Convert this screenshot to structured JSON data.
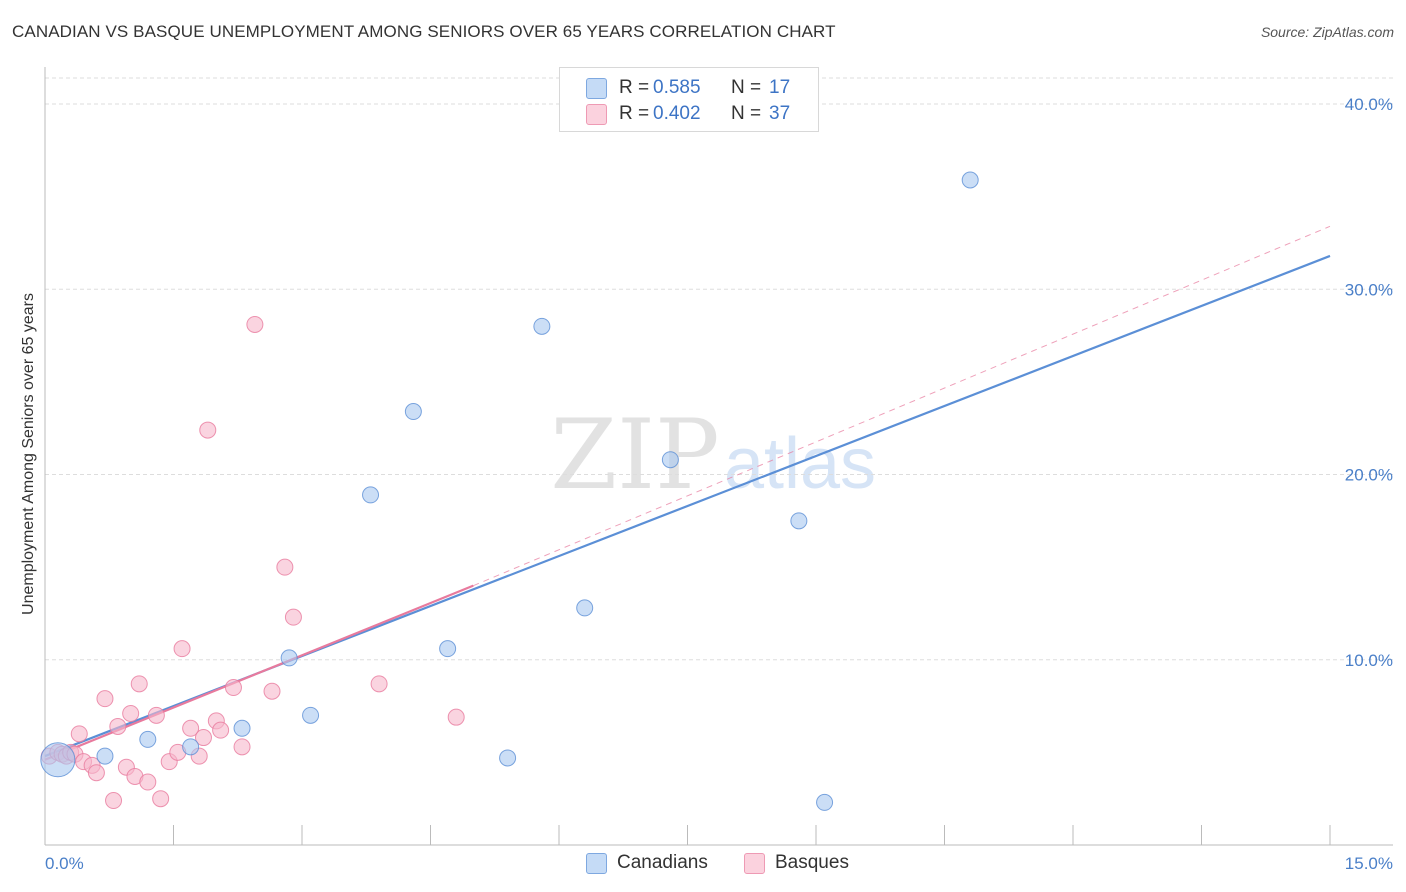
{
  "header": {
    "title": "CANADIAN VS BASQUE UNEMPLOYMENT AMONG SENIORS OVER 65 YEARS CORRELATION CHART",
    "source": "Source: ZipAtlas.com"
  },
  "watermark": {
    "zip": "ZIP",
    "atlas": "atlas"
  },
  "legend": {
    "rows": [
      {
        "r_label": "R =",
        "r_value": "0.585",
        "n_label": "N =",
        "n_value": "17",
        "color": "#a8c8f0"
      },
      {
        "r_label": "R =",
        "r_value": "0.402",
        "n_label": "N =",
        "n_value": "37",
        "color": "#f6b8cb"
      }
    ]
  },
  "bottom_legend": {
    "items": [
      {
        "label": "Canadians",
        "color": "#a8c8f0"
      },
      {
        "label": "Basques",
        "color": "#f6b8cb"
      }
    ]
  },
  "chart_data": {
    "type": "scatter",
    "title": "CANADIAN VS BASQUE UNEMPLOYMENT AMONG SENIORS OVER 65 YEARS CORRELATION CHART",
    "xlabel": "",
    "ylabel": "Unemployment Among Seniors over 65 years",
    "xlim": [
      0,
      15
    ],
    "ylim": [
      0,
      42
    ],
    "x_tick_labels": [
      "0.0%",
      "15.0%"
    ],
    "y_ticks": [
      10,
      20,
      30,
      40
    ],
    "y_tick_labels": [
      "10.0%",
      "20.0%",
      "30.0%",
      "40.0%"
    ],
    "grid": true,
    "series": [
      {
        "name": "Canadians",
        "color": "#5b8fd6",
        "fill": "#a8c8f0",
        "points": [
          {
            "x": 0.15,
            "y": 4.6,
            "big": true
          },
          {
            "x": 0.7,
            "y": 4.8
          },
          {
            "x": 1.2,
            "y": 5.7
          },
          {
            "x": 1.7,
            "y": 5.3
          },
          {
            "x": 2.3,
            "y": 6.3
          },
          {
            "x": 2.85,
            "y": 10.1
          },
          {
            "x": 3.1,
            "y": 7.0
          },
          {
            "x": 3.8,
            "y": 18.9
          },
          {
            "x": 4.3,
            "y": 23.4
          },
          {
            "x": 4.7,
            "y": 10.6
          },
          {
            "x": 5.4,
            "y": 4.7
          },
          {
            "x": 5.8,
            "y": 28.0
          },
          {
            "x": 6.3,
            "y": 12.8
          },
          {
            "x": 7.3,
            "y": 20.8
          },
          {
            "x": 8.8,
            "y": 17.5
          },
          {
            "x": 9.1,
            "y": 2.3
          },
          {
            "x": 10.8,
            "y": 35.9
          }
        ],
        "trend": {
          "x1": 0.0,
          "y1": 4.8,
          "x2": 15.0,
          "y2": 31.8,
          "style": "solid"
        }
      },
      {
        "name": "Basques",
        "color": "#e87a9d",
        "fill": "#f6b8cb",
        "points": [
          {
            "x": 0.05,
            "y": 4.8
          },
          {
            "x": 0.15,
            "y": 5.0
          },
          {
            "x": 0.2,
            "y": 4.9
          },
          {
            "x": 0.25,
            "y": 4.8
          },
          {
            "x": 0.3,
            "y": 5.0
          },
          {
            "x": 0.35,
            "y": 4.9
          },
          {
            "x": 0.4,
            "y": 6.0
          },
          {
            "x": 0.45,
            "y": 4.5
          },
          {
            "x": 0.55,
            "y": 4.3
          },
          {
            "x": 0.6,
            "y": 3.9
          },
          {
            "x": 0.7,
            "y": 7.9
          },
          {
            "x": 0.8,
            "y": 2.4
          },
          {
            "x": 0.85,
            "y": 6.4
          },
          {
            "x": 0.95,
            "y": 4.2
          },
          {
            "x": 1.0,
            "y": 7.1
          },
          {
            "x": 1.05,
            "y": 3.7
          },
          {
            "x": 1.1,
            "y": 8.7
          },
          {
            "x": 1.2,
            "y": 3.4
          },
          {
            "x": 1.3,
            "y": 7.0
          },
          {
            "x": 1.35,
            "y": 2.5
          },
          {
            "x": 1.45,
            "y": 4.5
          },
          {
            "x": 1.55,
            "y": 5.0
          },
          {
            "x": 1.6,
            "y": 10.6
          },
          {
            "x": 1.7,
            "y": 6.3
          },
          {
            "x": 1.8,
            "y": 4.8
          },
          {
            "x": 1.85,
            "y": 5.8
          },
          {
            "x": 1.9,
            "y": 22.4
          },
          {
            "x": 2.0,
            "y": 6.7
          },
          {
            "x": 2.05,
            "y": 6.2
          },
          {
            "x": 2.2,
            "y": 8.5
          },
          {
            "x": 2.3,
            "y": 5.3
          },
          {
            "x": 2.45,
            "y": 28.1
          },
          {
            "x": 2.65,
            "y": 8.3
          },
          {
            "x": 2.8,
            "y": 15.0
          },
          {
            "x": 2.9,
            "y": 12.3
          },
          {
            "x": 3.9,
            "y": 8.7
          },
          {
            "x": 4.8,
            "y": 6.9
          }
        ],
        "trend": {
          "x1": 0.0,
          "y1": 4.6,
          "x2": 5.0,
          "y2": 14.0,
          "style": "solid"
        },
        "trend_extension": {
          "x1": 5.0,
          "y1": 14.0,
          "x2": 15.0,
          "y2": 33.4,
          "style": "dashed"
        }
      }
    ]
  }
}
